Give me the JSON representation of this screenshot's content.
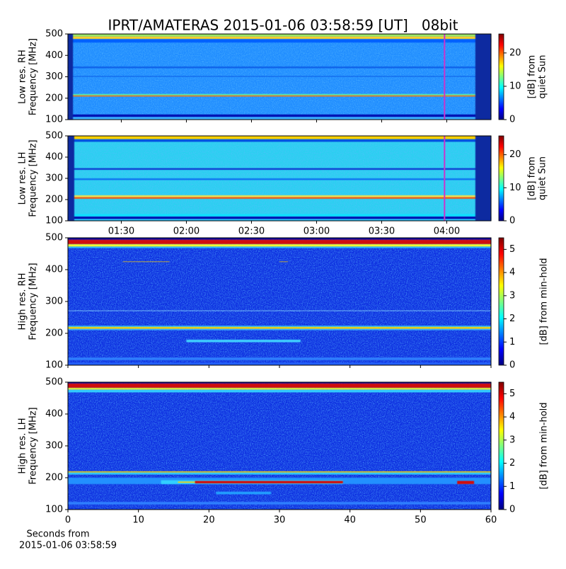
{
  "chart_data": [
    {
      "type": "spectrogram",
      "title": "IPRT/AMATERAS 2015-01-06 03:58:59 [UT]   08bit",
      "ylabel": [
        "Low res. RH",
        "Frequency [MHz]"
      ],
      "ylim": [
        100,
        500
      ],
      "yticks": [
        100,
        200,
        300,
        400,
        500
      ],
      "xlim": [
        1.09,
        4.34
      ],
      "marker_x": 3.983,
      "marker_color": "#cc33cc",
      "colorbar": {
        "label": [
          "[dB] from",
          "quiet Sun"
        ],
        "lim": [
          0,
          25.7
        ],
        "ticks": [
          0,
          10,
          20
        ]
      }
    },
    {
      "type": "spectrogram",
      "ylabel": [
        "Low res. LH",
        "Frequency [MHz]"
      ],
      "ylim": [
        100,
        500
      ],
      "yticks": [
        100,
        200,
        300,
        400,
        500
      ],
      "xlim": [
        1.09,
        4.34
      ],
      "xticks": [
        {
          "value": 1.5,
          "label": "01:30"
        },
        {
          "value": 2,
          "label": "02:00"
        },
        {
          "value": 2.5,
          "label": "02:30"
        },
        {
          "value": 3,
          "label": "03:00"
        },
        {
          "value": 3.5,
          "label": "03:30"
        },
        {
          "value": 4,
          "label": "04:00"
        }
      ],
      "marker_x": 3.983,
      "marker_color": "#cc33cc",
      "colorbar": {
        "label": [
          "[dB] from",
          "quiet Sun"
        ],
        "lim": [
          0,
          25.7
        ],
        "ticks": [
          0,
          10,
          20
        ]
      }
    },
    {
      "type": "spectrogram",
      "ylabel": [
        "High res. RH",
        "Frequency [MHz]"
      ],
      "ylim": [
        100,
        500
      ],
      "yticks": [
        100,
        200,
        300,
        400,
        500
      ],
      "xlim": [
        0,
        60
      ],
      "colorbar": {
        "label": [
          "[dB] from min-hold"
        ],
        "lim": [
          0,
          5.5
        ],
        "ticks": [
          0,
          1,
          2,
          3,
          4,
          5
        ]
      }
    },
    {
      "type": "spectrogram",
      "ylabel": [
        "High res. LH",
        "Frequency [MHz]"
      ],
      "ylim": [
        100,
        500
      ],
      "yticks": [
        100,
        200,
        300,
        400,
        500
      ],
      "xlim": [
        0,
        60
      ],
      "xticks": [
        0,
        10,
        20,
        30,
        40,
        50,
        60
      ],
      "xlabel": [
        "Seconds from",
        "2015-01-06 03:58:59"
      ],
      "colorbar": {
        "label": [
          "[dB] from min-hold"
        ],
        "lim": [
          0,
          5.5
        ],
        "ticks": [
          0,
          1,
          2,
          3,
          4,
          5
        ]
      }
    }
  ]
}
